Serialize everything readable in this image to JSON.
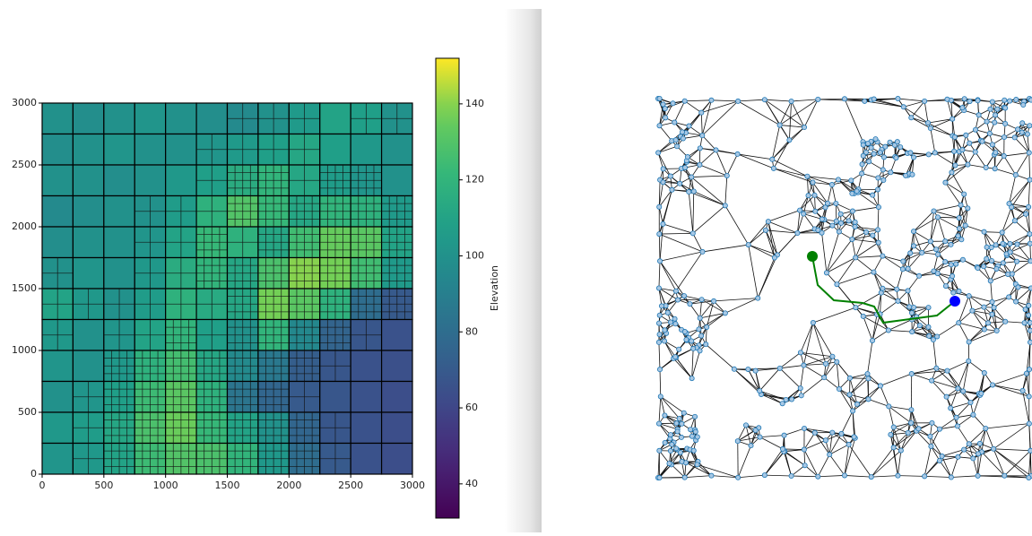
{
  "chart_data": {
    "type": "heatmap",
    "xlim": [
      0,
      3000
    ],
    "ylim": [
      0,
      3000
    ],
    "xticks": [
      0,
      500,
      1000,
      1500,
      2000,
      2500,
      3000
    ],
    "yticks": [
      0,
      500,
      1000,
      1500,
      2000,
      2500,
      3000
    ],
    "colormap": "viridis",
    "colorbar": {
      "label": "Elevation",
      "lim": [
        31,
        152
      ],
      "ticks": [
        40,
        60,
        80,
        100,
        120,
        140
      ]
    },
    "z": [
      [
        100,
        98,
        100,
        102,
        100,
        98,
        96,
        100,
        105,
        110,
        108,
        100
      ],
      [
        98,
        100,
        102,
        100,
        100,
        102,
        105,
        108,
        112,
        108,
        104,
        100
      ],
      [
        100,
        100,
        98,
        100,
        104,
        108,
        115,
        120,
        112,
        106,
        102,
        100
      ],
      [
        96,
        98,
        100,
        100,
        106,
        118,
        130,
        122,
        112,
        120,
        118,
        105
      ],
      [
        98,
        100,
        100,
        102,
        110,
        122,
        118,
        112,
        125,
        135,
        132,
        110
      ],
      [
        100,
        102,
        100,
        104,
        115,
        120,
        112,
        128,
        140,
        138,
        125,
        105
      ],
      [
        110,
        104,
        100,
        106,
        118,
        114,
        112,
        138,
        132,
        118,
        80,
        70
      ],
      [
        104,
        100,
        102,
        110,
        120,
        108,
        100,
        120,
        95,
        75,
        68,
        66
      ],
      [
        102,
        100,
        104,
        118,
        126,
        112,
        96,
        86,
        72,
        68,
        66,
        65
      ],
      [
        100,
        102,
        108,
        124,
        132,
        118,
        84,
        76,
        70,
        68,
        66,
        64
      ],
      [
        104,
        106,
        112,
        128,
        136,
        122,
        110,
        100,
        76,
        68,
        66,
        64
      ],
      [
        102,
        104,
        110,
        124,
        130,
        128,
        120,
        104,
        80,
        70,
        66,
        64
      ]
    ]
  }
}
